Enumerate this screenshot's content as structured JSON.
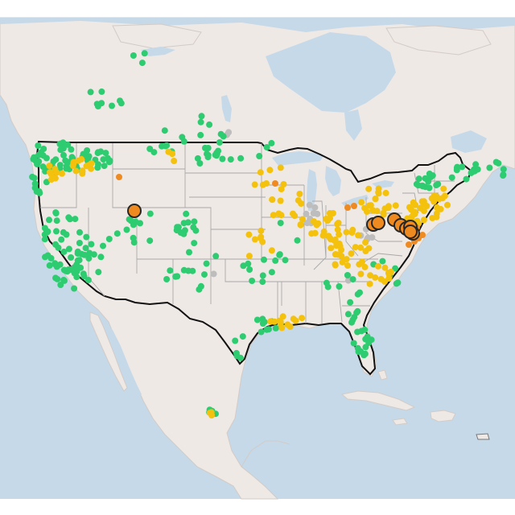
{
  "map": {
    "colors": {
      "water": "#c6d9e9",
      "land": "#efe9e6",
      "land_outline": "#d2cbc6",
      "country_border": "#111111",
      "state_border": "#a8a8a8",
      "green": "#2ecc71",
      "yellow": "#f4c20d",
      "orange": "#ef8a21",
      "gray": "#bdbdbd",
      "marker_stroke": "#262626"
    },
    "sensor_levels": [
      "good",
      "moderate",
      "unhealthy-sensitive",
      "no-data"
    ],
    "large_markers_count": 9,
    "level_points_approx": {
      "green": 300,
      "yellow": 220,
      "orange": 10,
      "gray": 18
    }
  }
}
